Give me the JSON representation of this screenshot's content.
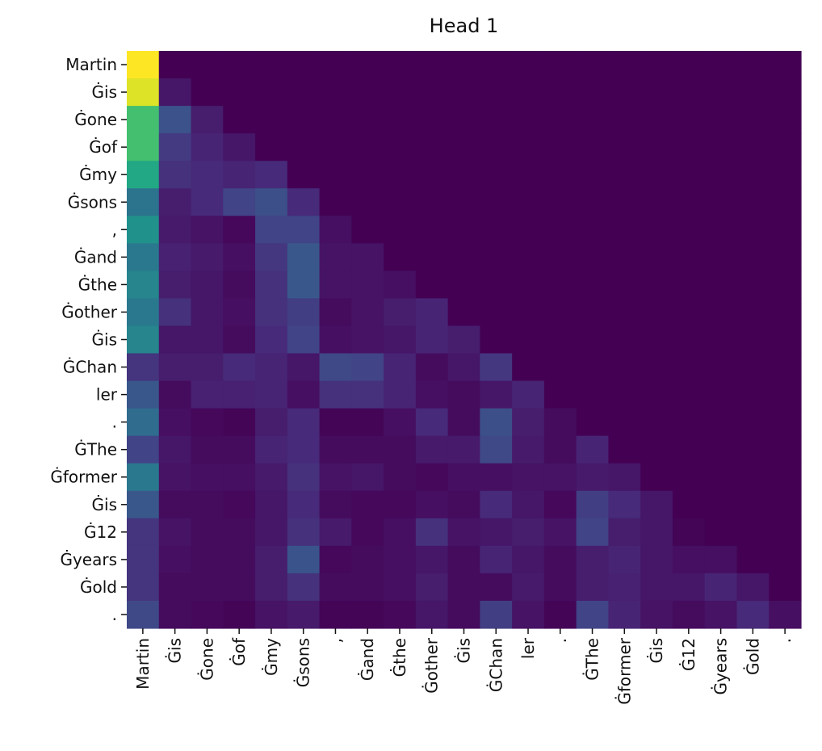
{
  "chart_data": {
    "type": "heatmap",
    "title": "Head 1",
    "colormap": "viridis",
    "value_range": [
      0,
      1
    ],
    "colorbar": false,
    "xlabel": "",
    "ylabel": "",
    "x_labels": [
      "Martin",
      "Ġis",
      "Ġone",
      "Ġof",
      "Ġmy",
      "Ġsons",
      ",",
      "Ġand",
      "Ġthe",
      "Ġother",
      "Ġis",
      "ĠChan",
      "ler",
      ".",
      "ĠThe",
      "Ġformer",
      "Ġis",
      "Ġ12",
      "Ġyears",
      "Ġold",
      "."
    ],
    "y_labels": [
      "Martin",
      "Ġis",
      "Ġone",
      "Ġof",
      "Ġmy",
      "Ġsons",
      ",",
      "Ġand",
      "Ġthe",
      "Ġother",
      "Ġis",
      "ĠChan",
      "ler",
      ".",
      "ĠThe",
      "Ġformer",
      "Ġis",
      "Ġ12",
      "Ġyears",
      "Ġold",
      "."
    ],
    "rows": [
      [
        1.0
      ],
      [
        0.95,
        0.06
      ],
      [
        0.7,
        0.25,
        0.08
      ],
      [
        0.7,
        0.17,
        0.1,
        0.06
      ],
      [
        0.6,
        0.14,
        0.12,
        0.1,
        0.12
      ],
      [
        0.38,
        0.08,
        0.12,
        0.2,
        0.24,
        0.12
      ],
      [
        0.5,
        0.07,
        0.05,
        0.02,
        0.2,
        0.2,
        0.04
      ],
      [
        0.4,
        0.09,
        0.07,
        0.04,
        0.16,
        0.27,
        0.05,
        0.05
      ],
      [
        0.45,
        0.08,
        0.06,
        0.03,
        0.14,
        0.27,
        0.05,
        0.05,
        0.04
      ],
      [
        0.4,
        0.14,
        0.06,
        0.04,
        0.14,
        0.18,
        0.03,
        0.05,
        0.08,
        0.1
      ],
      [
        0.45,
        0.06,
        0.06,
        0.03,
        0.12,
        0.2,
        0.04,
        0.05,
        0.06,
        0.1,
        0.08
      ],
      [
        0.15,
        0.08,
        0.08,
        0.12,
        0.1,
        0.06,
        0.22,
        0.2,
        0.1,
        0.03,
        0.06,
        0.16
      ],
      [
        0.27,
        0.03,
        0.09,
        0.09,
        0.1,
        0.04,
        0.14,
        0.14,
        0.1,
        0.04,
        0.03,
        0.06,
        0.1
      ],
      [
        0.35,
        0.04,
        0.02,
        0.01,
        0.08,
        0.12,
        0.01,
        0.01,
        0.04,
        0.12,
        0.03,
        0.24,
        0.08,
        0.03
      ],
      [
        0.2,
        0.06,
        0.03,
        0.03,
        0.1,
        0.12,
        0.03,
        0.03,
        0.03,
        0.07,
        0.07,
        0.22,
        0.07,
        0.03,
        0.1
      ],
      [
        0.4,
        0.05,
        0.04,
        0.04,
        0.07,
        0.14,
        0.05,
        0.06,
        0.03,
        0.02,
        0.04,
        0.04,
        0.05,
        0.05,
        0.07,
        0.06
      ],
      [
        0.27,
        0.03,
        0.03,
        0.02,
        0.06,
        0.12,
        0.03,
        0.02,
        0.02,
        0.04,
        0.03,
        0.12,
        0.06,
        0.02,
        0.18,
        0.12,
        0.06
      ],
      [
        0.15,
        0.05,
        0.03,
        0.03,
        0.06,
        0.14,
        0.07,
        0.02,
        0.04,
        0.14,
        0.05,
        0.06,
        0.08,
        0.05,
        0.2,
        0.08,
        0.06,
        0.01
      ],
      [
        0.15,
        0.04,
        0.03,
        0.03,
        0.08,
        0.26,
        0.02,
        0.03,
        0.04,
        0.06,
        0.03,
        0.1,
        0.06,
        0.03,
        0.08,
        0.1,
        0.06,
        0.04,
        0.04
      ],
      [
        0.15,
        0.03,
        0.03,
        0.03,
        0.08,
        0.14,
        0.03,
        0.03,
        0.04,
        0.08,
        0.03,
        0.03,
        0.07,
        0.03,
        0.08,
        0.09,
        0.06,
        0.06,
        0.1,
        0.06
      ],
      [
        0.22,
        0.03,
        0.02,
        0.01,
        0.05,
        0.07,
        0.01,
        0.01,
        0.02,
        0.06,
        0.03,
        0.18,
        0.05,
        0.01,
        0.2,
        0.1,
        0.05,
        0.03,
        0.05,
        0.12,
        0.04
      ]
    ]
  }
}
